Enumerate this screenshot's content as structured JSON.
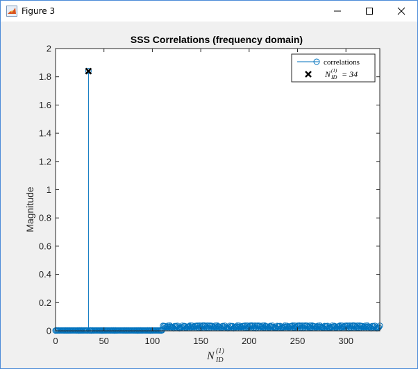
{
  "window": {
    "title": "Figure 3",
    "icon": "matlab-figure-icon",
    "controls": [
      "minimize-icon",
      "maximize-icon",
      "close-icon"
    ]
  },
  "chart_data": {
    "type": "stem",
    "title": "SSS Correlations (frequency domain)",
    "xlabel": {
      "base": "N",
      "superscript": "(1)",
      "subscript": "ID"
    },
    "ylabel": "Magnitude",
    "xlim": [
      0,
      335
    ],
    "ylim": [
      0,
      2.0
    ],
    "xticks": [
      0,
      50,
      100,
      150,
      200,
      250,
      300
    ],
    "yticks": [
      0,
      0.2,
      0.4,
      0.6,
      0.8,
      1,
      1.2,
      1.4,
      1.6,
      1.8,
      2
    ],
    "ytick_labels": [
      "0",
      "0.2",
      "0.4",
      "0.6",
      "0.8",
      "1",
      "1.2",
      "1.4",
      "1.6",
      "1.8",
      "2"
    ],
    "grid": false,
    "legend_position": "top-right",
    "colors": {
      "correlations": "#0072bd",
      "marker": "#000000",
      "axes": "#262626"
    },
    "series": [
      {
        "name": "correlations",
        "style": "stem with open circle markers",
        "x_range": [
          0,
          335
        ],
        "values_summary": "near-zero magnitudes (~0.002) for N_ID from 0 to about 110, then small values around 0.02-0.04 from about 111 to 335",
        "peak": {
          "x": 34,
          "y": 1.84
        }
      },
      {
        "name": "N_ID^(1) = 34",
        "style": "black x marker",
        "points": [
          {
            "x": 34,
            "y": 1.84
          }
        ]
      }
    ],
    "legend": [
      {
        "label": "correlations",
        "marker": "line-with-circle"
      },
      {
        "label_math": {
          "base": "N",
          "superscript": "(1)",
          "subscript": "ID",
          "rhs": "= 34"
        },
        "marker": "x"
      }
    ]
  }
}
